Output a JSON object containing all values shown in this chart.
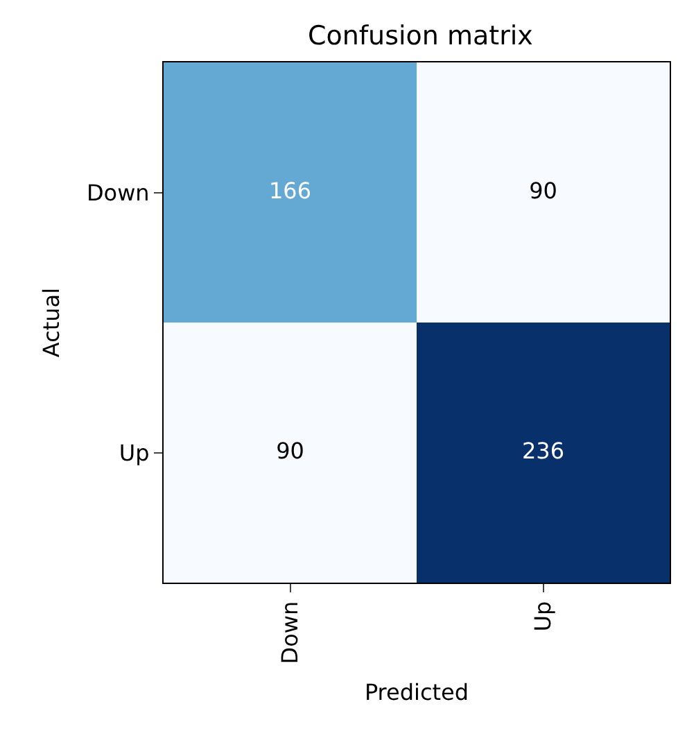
{
  "chart_data": {
    "type": "heatmap",
    "title": "Confusion matrix",
    "xlabel": "Predicted",
    "ylabel": "Actual",
    "categories": [
      "Down",
      "Up"
    ],
    "y_categories": [
      "Down",
      "Up"
    ],
    "cells": [
      [
        166,
        90
      ],
      [
        90,
        236
      ]
    ],
    "data_labels": true
  }
}
